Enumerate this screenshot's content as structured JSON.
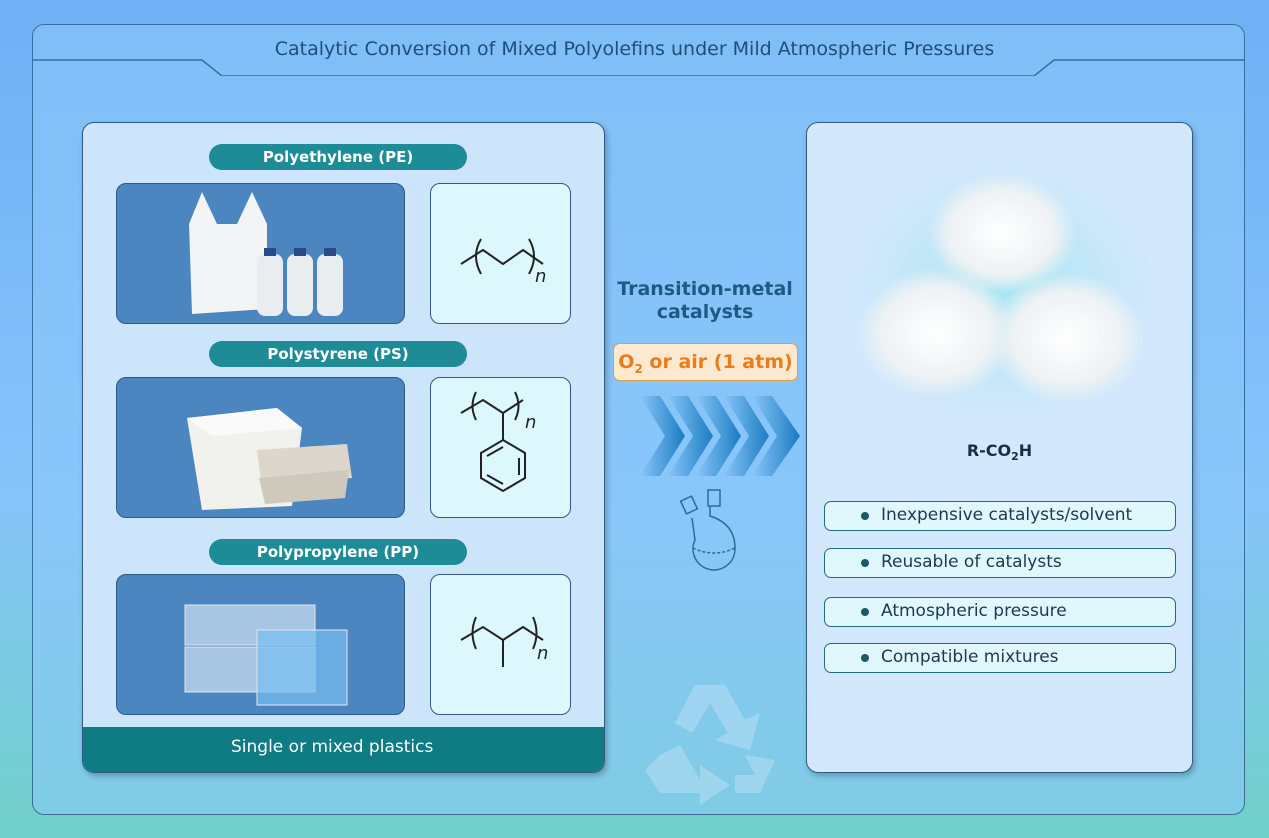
{
  "title": "Catalytic Conversion of Mixed Polyolefins under Mild Atmospheric Pressures",
  "left_panel": {
    "sections": [
      {
        "label": "Polyethylene (PE)",
        "subscript": "n"
      },
      {
        "label": "Polystyrene (PS)",
        "subscript": "n"
      },
      {
        "label": "Polypropylene (PP)",
        "subscript": "n"
      }
    ],
    "footer": "Single or mixed plastics"
  },
  "middle": {
    "catalyst": "Transition-metal catalysts",
    "condition_prefix": "O",
    "condition_sub": "2",
    "condition_rest": " or air (1 atm)",
    "arrow_color": "#1a7cc0",
    "condition_color": "#ea7d1a"
  },
  "right_panel": {
    "product_prefix": "R-CO",
    "product_sub": "2",
    "product_suffix": "H",
    "bullets": [
      "Inexpensive catalysts/solvent",
      "Reusable of catalysts",
      "Atmospheric pressure",
      "Compatible mixtures"
    ]
  },
  "colors": {
    "teal": "#1e8c96",
    "frame": "#2d5b85",
    "title": "#1f4e79"
  }
}
